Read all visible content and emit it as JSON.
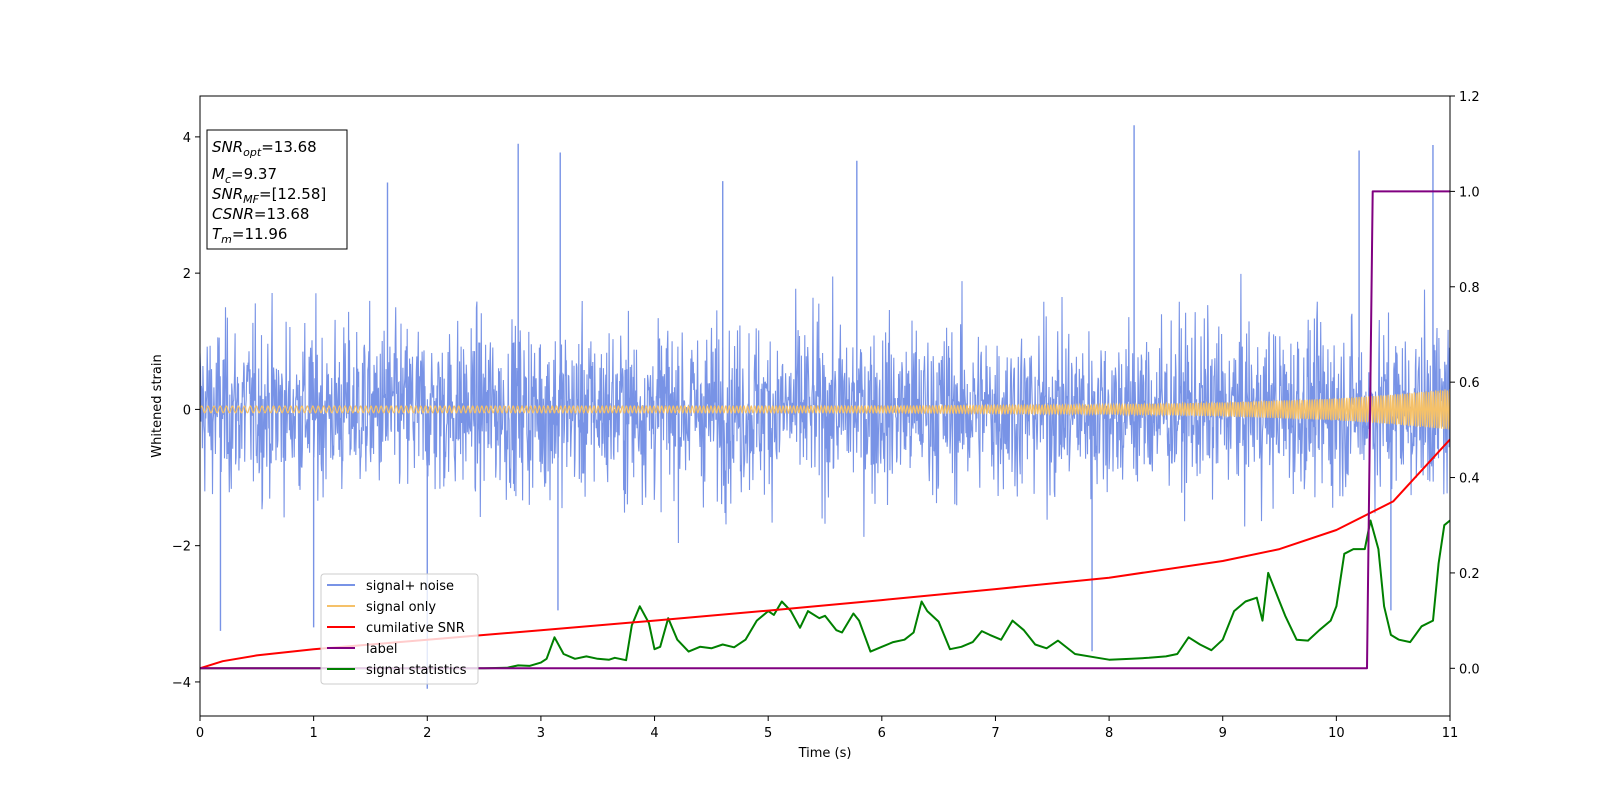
{
  "chart_data": {
    "type": "line",
    "xlabel": "Time (s)",
    "ylabel": "Whitened strain",
    "xlim": [
      0,
      11
    ],
    "ylim": [
      -4.5,
      4.6
    ],
    "y2lim": [
      -0.1,
      1.2
    ],
    "x_ticks": [
      "0",
      "1",
      "2",
      "3",
      "4",
      "5",
      "6",
      "7",
      "8",
      "9",
      "10",
      "11"
    ],
    "y_ticks": [
      "4",
      "2",
      "0",
      "−2",
      "−4"
    ],
    "y2_ticks": [
      "1.2",
      "1.0",
      "0.8",
      "0.6",
      "0.4",
      "0.2",
      "0.0"
    ],
    "legend_placement": "lower-left",
    "info_box": {
      "snr_opt": {
        "main": "SNR",
        "sub": "opt",
        "rest": "=13.68"
      },
      "mc": {
        "main": "M",
        "sub": "c",
        "rest": "=9.37"
      },
      "snr_mf": {
        "main": "SNR",
        "sub": "MF",
        "rest": "=[12.58]"
      },
      "csnr": {
        "main": "CSNR",
        "rest": "=13.68"
      },
      "tm": {
        "main": "T",
        "sub": "m",
        "rest": "=11.96"
      }
    },
    "series": [
      {
        "name": "signal+ noise",
        "axis": "left",
        "color": "#7893e6",
        "summary": "dense noisy strain, roughly within -2.5 to 2.5 with spikes",
        "spikes": [
          {
            "x": 2.8,
            "y": 3.9
          },
          {
            "x": 3.17,
            "y": 3.77
          },
          {
            "x": 8.22,
            "y": 4.17
          },
          {
            "x": 10.2,
            "y": 3.8
          },
          {
            "x": 10.85,
            "y": 3.88
          },
          {
            "x": 4.6,
            "y": 3.35
          },
          {
            "x": 5.78,
            "y": 3.65
          },
          {
            "x": 1.65,
            "y": 3.33
          },
          {
            "x": 2.0,
            "y": -4.1
          },
          {
            "x": 1.0,
            "y": -3.2
          },
          {
            "x": 3.15,
            "y": -2.95
          },
          {
            "x": 7.85,
            "y": -3.55
          },
          {
            "x": 0.18,
            "y": -3.25
          },
          {
            "x": 10.48,
            "y": -2.95
          }
        ]
      },
      {
        "name": "signal only",
        "axis": "left",
        "color": "#f5c169",
        "envelope": {
          "x": [
            0,
            6,
            8,
            9,
            10,
            10.5,
            11
          ],
          "amp": [
            0.05,
            0.05,
            0.07,
            0.1,
            0.16,
            0.22,
            0.3
          ]
        }
      },
      {
        "name": "cumilative SNR",
        "axis": "right",
        "color": "#ff0000",
        "x": [
          0,
          0.2,
          0.5,
          1,
          2,
          3,
          4,
          5,
          6,
          7,
          8,
          9,
          9.5,
          10,
          10.5,
          11
        ],
        "values": [
          0.0,
          0.015,
          0.027,
          0.04,
          0.06,
          0.08,
          0.1,
          0.121,
          0.143,
          0.166,
          0.19,
          0.225,
          0.25,
          0.29,
          0.35,
          0.48
        ]
      },
      {
        "name": "label",
        "axis": "right",
        "color": "#800080",
        "x": [
          0,
          10.27,
          10.32,
          11
        ],
        "values": [
          0.0,
          0.0,
          1.0,
          1.0
        ]
      },
      {
        "name": "signal statistics",
        "axis": "right",
        "color": "#008000",
        "x": [
          0,
          0.5,
          1,
          1.5,
          2,
          2.5,
          2.7,
          2.8,
          2.9,
          3.0,
          3.05,
          3.12,
          3.2,
          3.3,
          3.4,
          3.5,
          3.6,
          3.65,
          3.75,
          3.8,
          3.87,
          3.95,
          4.0,
          4.05,
          4.12,
          4.2,
          4.3,
          4.4,
          4.5,
          4.6,
          4.7,
          4.8,
          4.9,
          5.0,
          5.05,
          5.12,
          5.2,
          5.28,
          5.35,
          5.45,
          5.5,
          5.6,
          5.65,
          5.75,
          5.8,
          5.9,
          6.0,
          6.1,
          6.2,
          6.28,
          6.35,
          6.4,
          6.5,
          6.6,
          6.7,
          6.8,
          6.88,
          6.95,
          7.05,
          7.15,
          7.25,
          7.35,
          7.45,
          7.55,
          7.7,
          7.9,
          8.0,
          8.2,
          8.35,
          8.5,
          8.6,
          8.7,
          8.8,
          8.9,
          9.0,
          9.1,
          9.2,
          9.3,
          9.35,
          9.4,
          9.5,
          9.55,
          9.65,
          9.75,
          9.85,
          9.95,
          10.0,
          10.07,
          10.15,
          10.25,
          10.3,
          10.37,
          10.42,
          10.48,
          10.55,
          10.65,
          10.75,
          10.85,
          10.9,
          10.95,
          11.0
        ],
        "values": [
          0.0,
          0.0,
          0.0,
          0.0,
          0.0,
          0.0,
          0.001,
          0.006,
          0.005,
          0.012,
          0.02,
          0.065,
          0.03,
          0.02,
          0.025,
          0.02,
          0.018,
          0.022,
          0.017,
          0.09,
          0.13,
          0.095,
          0.04,
          0.045,
          0.105,
          0.06,
          0.035,
          0.045,
          0.042,
          0.05,
          0.044,
          0.06,
          0.1,
          0.12,
          0.112,
          0.14,
          0.12,
          0.085,
          0.12,
          0.105,
          0.11,
          0.08,
          0.075,
          0.115,
          0.1,
          0.035,
          0.045,
          0.055,
          0.06,
          0.075,
          0.14,
          0.12,
          0.098,
          0.04,
          0.045,
          0.055,
          0.078,
          0.07,
          0.06,
          0.1,
          0.08,
          0.05,
          0.042,
          0.058,
          0.03,
          0.022,
          0.018,
          0.02,
          0.022,
          0.025,
          0.03,
          0.065,
          0.05,
          0.038,
          0.06,
          0.12,
          0.14,
          0.148,
          0.1,
          0.2,
          0.14,
          0.11,
          0.06,
          0.058,
          0.08,
          0.1,
          0.13,
          0.24,
          0.25,
          0.25,
          0.31,
          0.25,
          0.13,
          0.07,
          0.06,
          0.055,
          0.088,
          0.1,
          0.22,
          0.3,
          0.31
        ]
      }
    ]
  }
}
